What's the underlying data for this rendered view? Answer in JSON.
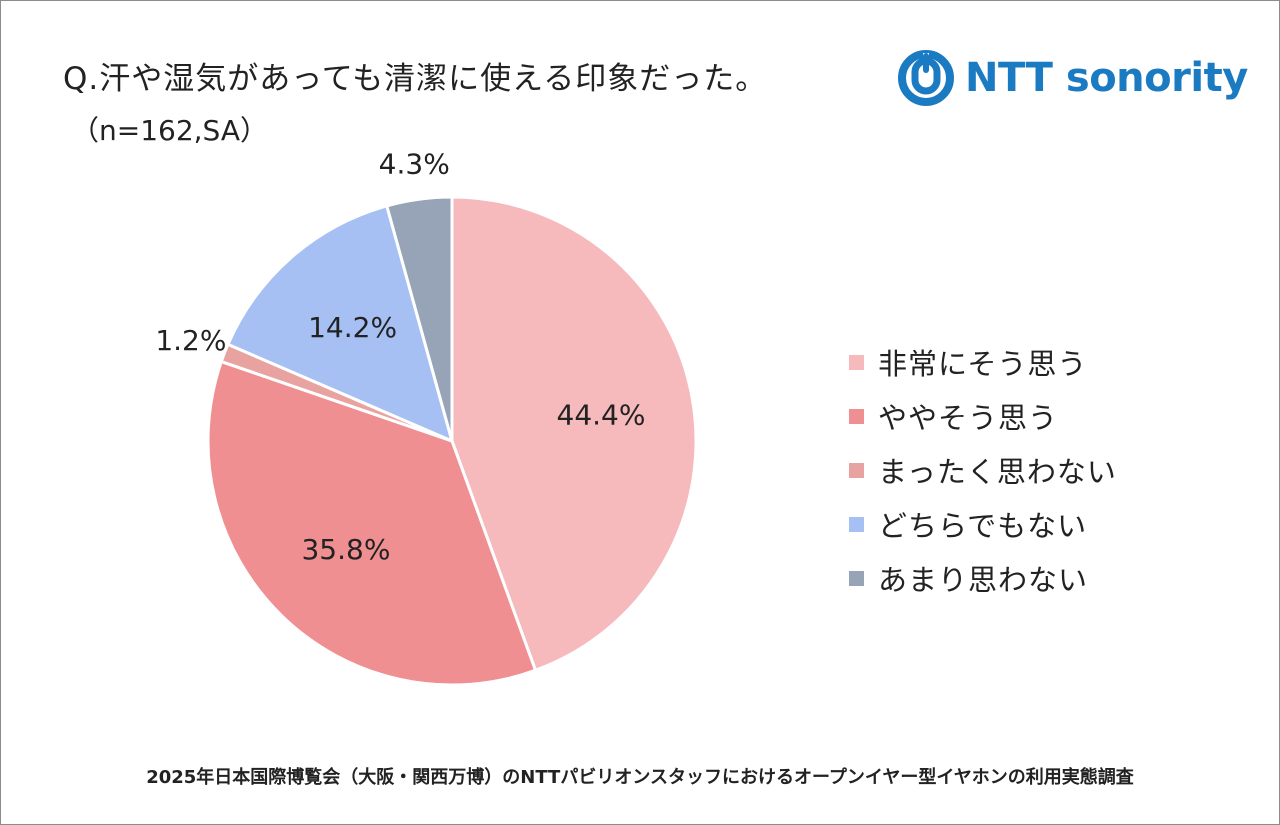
{
  "question": "Q.汗や湿気があっても清潔に使える印象だった。",
  "sample": "（n=162,SA）",
  "logo": {
    "text": "NTT sonority",
    "color": "#1a7ac2",
    "icon": "ntt-logo-icon"
  },
  "footer": "2025年日本国際博覧会（大阪・関西万博）のNTTパビリオンスタッフにおけるオープンイヤー型イヤホンの利用実態調査",
  "chart_data": {
    "type": "pie",
    "start": "12 o'clock, clockwise",
    "legend_position": "right",
    "slices": [
      {
        "label": "非常にそう思う",
        "value": 44.4,
        "display": "44.4%",
        "color": "#f6babc"
      },
      {
        "label": "ややそう思う",
        "value": 35.8,
        "display": "35.8%",
        "color": "#f08f92"
      },
      {
        "label": "まったく思わない",
        "value": 1.2,
        "display": "1.2%",
        "color": "#e8a2a0"
      },
      {
        "label": "どちらでもない",
        "value": 14.2,
        "display": "14.2%",
        "color": "#a6c0f4"
      },
      {
        "label": "あまり思わない",
        "value": 4.3,
        "display": "4.3%",
        "color": "#97a3b6"
      }
    ]
  }
}
